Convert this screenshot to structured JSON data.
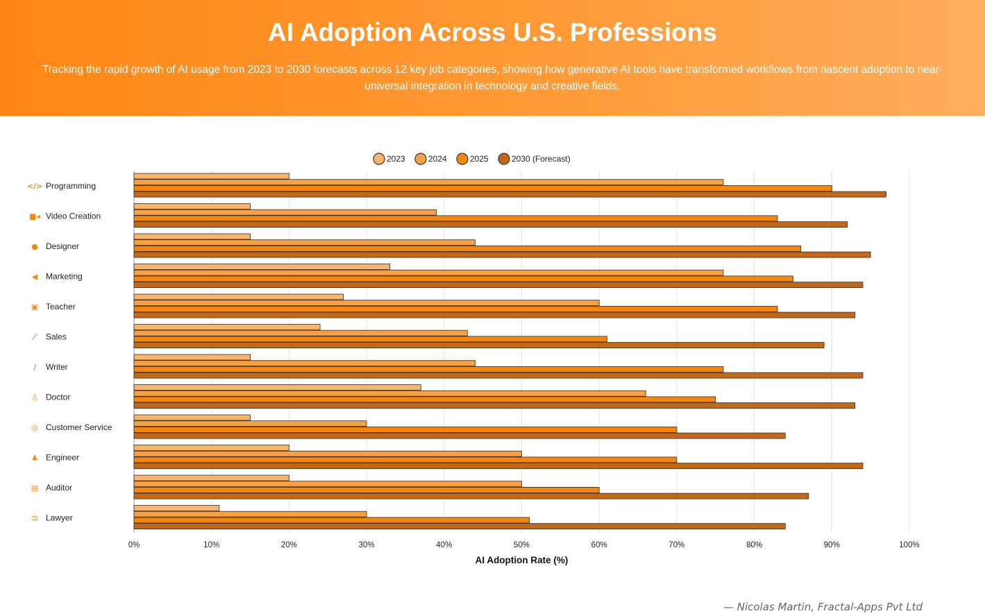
{
  "header": {
    "title": "AI Adoption Across U.S. Professions",
    "subtitle": "Tracking the rapid growth of AI usage from 2023 to 2030 forecasts across 12 key job categories, showing how generative AI tools have transformed workflows from nascent adoption to near-universal integration in technology and creative fields."
  },
  "footer": {
    "credit": "— Nicolas Martin, Fractal-Apps Pvt Ltd"
  },
  "chart_data": {
    "type": "bar",
    "orientation": "horizontal",
    "categories": [
      "Programming",
      "Video Creation",
      "Designer",
      "Marketing",
      "Teacher",
      "Sales",
      "Writer",
      "Doctor",
      "Customer Service",
      "Engineer",
      "Auditor",
      "Lawyer"
    ],
    "icons": [
      "code-icon",
      "video-camera-icon",
      "palette-icon",
      "megaphone-icon",
      "teacher-icon",
      "chart-line-icon",
      "brush-icon",
      "doctor-icon",
      "headset-icon",
      "engineer-icon",
      "calculator-icon",
      "scale-icon"
    ],
    "series": [
      {
        "name": "2023",
        "color": "#f9b46e",
        "values": [
          20,
          15,
          15,
          33,
          27,
          24,
          15,
          37,
          15,
          20,
          20,
          11
        ]
      },
      {
        "name": "2024",
        "color": "#f7a044",
        "values": [
          76,
          39,
          44,
          76,
          60,
          43,
          44,
          66,
          30,
          50,
          50,
          30
        ]
      },
      {
        "name": "2025",
        "color": "#f5870f",
        "values": [
          90,
          83,
          86,
          85,
          83,
          61,
          76,
          75,
          70,
          70,
          60,
          51
        ]
      },
      {
        "name": "2030 (Forecast)",
        "color": "#c2681a",
        "values": [
          97,
          92,
          95,
          94,
          93,
          89,
          94,
          93,
          84,
          94,
          87,
          84
        ]
      }
    ],
    "xlabel": "AI Adoption Rate (%)",
    "xlim": [
      0,
      100
    ],
    "xticks": [
      "0%",
      "10%",
      "20%",
      "30%",
      "40%",
      "50%",
      "60%",
      "70%",
      "80%",
      "90%",
      "100%"
    ],
    "grid": true,
    "legend": "top",
    "accent": "#f5870f"
  }
}
